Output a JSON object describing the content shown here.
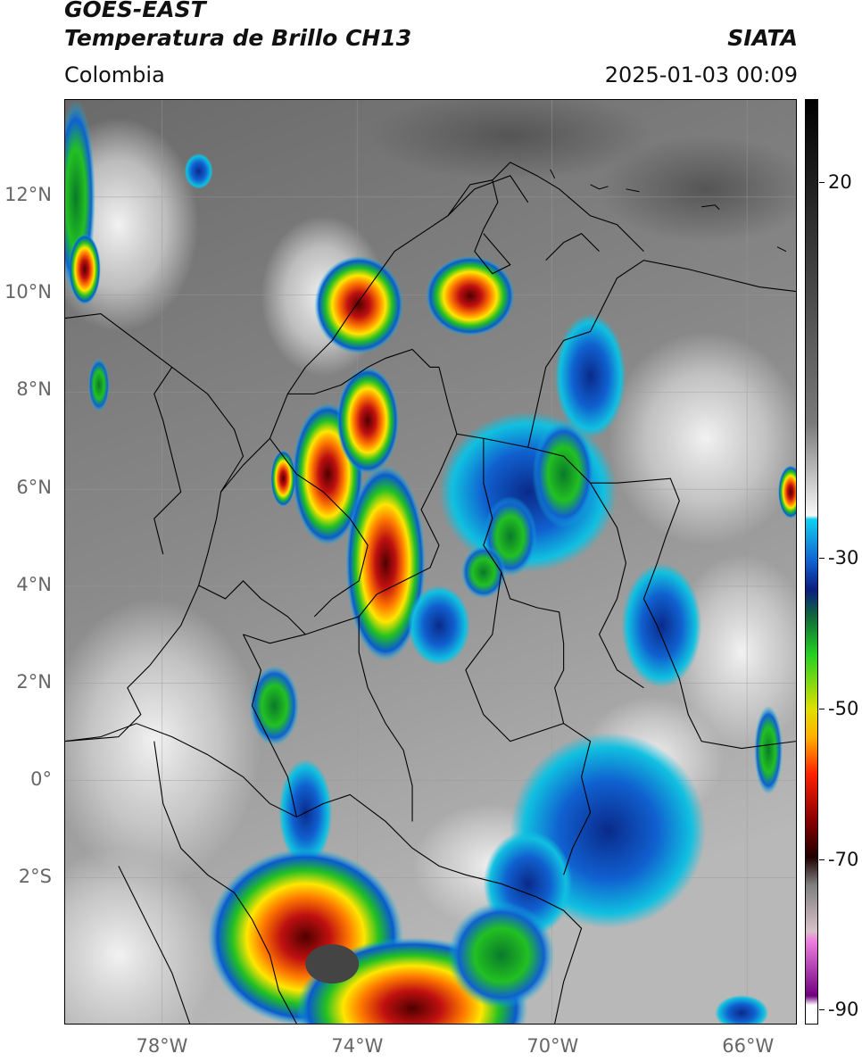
{
  "header": {
    "title_line1": "GOES-EAST",
    "title_line2": "Temperatura de Brillo CH13",
    "region": "Colombia",
    "organization": "SIATA",
    "timestamp": "2025-01-03 00:09"
  },
  "map": {
    "lon_range": [
      -80,
      -65
    ],
    "lat_range": [
      -5,
      14
    ],
    "lat_labels": [
      {
        "value": 12,
        "label": "12°N"
      },
      {
        "value": 10,
        "label": "10°N"
      },
      {
        "value": 8,
        "label": "8°N"
      },
      {
        "value": 6,
        "label": "6°N"
      },
      {
        "value": 4,
        "label": "4°N"
      },
      {
        "value": 2,
        "label": "2°N"
      },
      {
        "value": 0,
        "label": "0°"
      },
      {
        "value": -2,
        "label": "2°S"
      }
    ],
    "lon_labels": [
      {
        "value": -78,
        "label": "78°W"
      },
      {
        "value": -74,
        "label": "74°W"
      },
      {
        "value": -70,
        "label": "70°W"
      },
      {
        "value": -66,
        "label": "66°W"
      }
    ]
  },
  "colorbar": {
    "range": [
      -92,
      31
    ],
    "ticks": [
      {
        "value": 20,
        "label": "20"
      },
      {
        "value": -30,
        "label": "-30"
      },
      {
        "value": -50,
        "label": "-50"
      },
      {
        "value": -70,
        "label": "-70"
      },
      {
        "value": -90,
        "label": "-90"
      }
    ]
  },
  "colors": {
    "cold_core": "#8a0000",
    "red": "#e01010",
    "orange": "#ff8c00",
    "yellow": "#ffe600",
    "green": "#22c022",
    "dark_green": "#0a7a2a",
    "navy": "#0a2a8a",
    "blue": "#1060d0",
    "cyan": "#10c0e0",
    "magenta": "#c040c0"
  }
}
